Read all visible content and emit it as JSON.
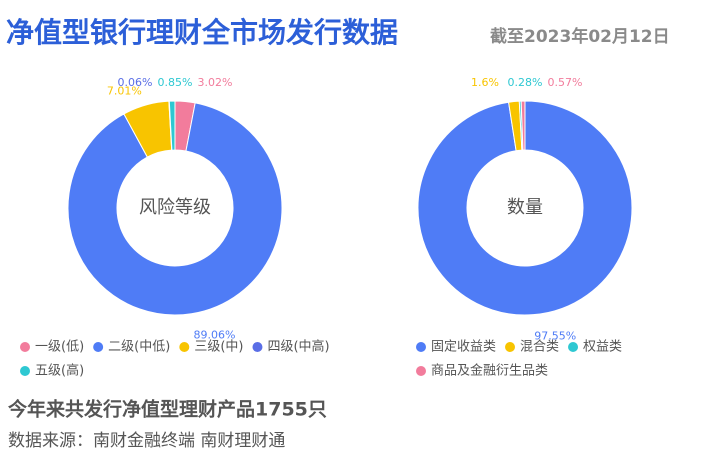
{
  "header": {
    "title": "净值型银行理财全市场发行数据",
    "date": "截至2023年02月12日"
  },
  "chart_data": [
    {
      "type": "pie",
      "center_label": "风险等级",
      "categories": [
        "一级(低)",
        "二级(中低)",
        "三级(中)",
        "四级(中高)",
        "五级(高)"
      ],
      "values": [
        3.02,
        89.06,
        7.01,
        0.06,
        0.85
      ],
      "value_labels": [
        "3.02%",
        "89.06%",
        "7.01%",
        "0.06%",
        "0.85%"
      ],
      "colors": [
        "#f27c9c",
        "#4f7cf6",
        "#f8c400",
        "#5a6ee6",
        "#2ec8d2"
      ]
    },
    {
      "type": "pie",
      "center_label": "数量",
      "categories": [
        "固定收益类",
        "混合类",
        "权益类",
        "商品及金融衍生品类"
      ],
      "values": [
        97.55,
        1.6,
        0.28,
        0.57
      ],
      "value_labels": [
        "97.55%",
        "1.6%",
        "0.28%",
        "0.57%"
      ],
      "colors": [
        "#4f7cf6",
        "#f8c400",
        "#2ec8d2",
        "#f27c9c"
      ]
    }
  ],
  "footer": {
    "summary": "今年来共发行净值型理财产品1755只",
    "source": "数据来源：南财金融终端 南财理财通"
  }
}
